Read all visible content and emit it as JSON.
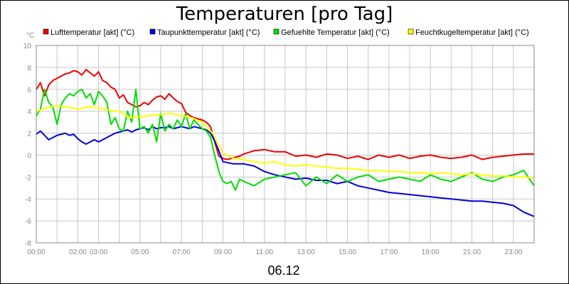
{
  "chart_data": {
    "type": "line",
    "title": "Temperaturen [pro Tag]",
    "date_label": "06.12",
    "yunit": "°C",
    "xlabel": "",
    "ylabel": "",
    "xlim": [
      0,
      24
    ],
    "ylim": [
      -8,
      10
    ],
    "y_ticks": [
      -8,
      -6,
      -4,
      -2,
      0,
      2,
      4,
      6,
      8,
      10
    ],
    "x_ticks": [
      {
        "value": 0,
        "label": "00:00"
      },
      {
        "value": 2,
        "label": "02:00"
      },
      {
        "value": 3,
        "label": "03:00"
      },
      {
        "value": 5,
        "label": "05:00"
      },
      {
        "value": 7,
        "label": "07:00"
      },
      {
        "value": 9,
        "label": "09:00"
      },
      {
        "value": 11,
        "label": "11:00"
      },
      {
        "value": 13,
        "label": "13:00"
      },
      {
        "value": 15,
        "label": "15:00"
      },
      {
        "value": 17,
        "label": "17:00"
      },
      {
        "value": 19,
        "label": "19:00"
      },
      {
        "value": 21,
        "label": "21:00"
      },
      {
        "value": 23,
        "label": "23:00"
      }
    ],
    "grid": true,
    "legend_position": "top",
    "series": [
      {
        "name": "Lufttemperatur [akt] (°C)",
        "color": "#ee0000",
        "x": [
          0,
          0.2,
          0.4,
          0.6,
          0.8,
          1,
          1.2,
          1.4,
          1.6,
          1.8,
          2,
          2.2,
          2.4,
          2.6,
          2.8,
          3,
          3.2,
          3.4,
          3.6,
          3.8,
          4,
          4.2,
          4.4,
          4.6,
          4.8,
          5,
          5.2,
          5.4,
          5.6,
          5.8,
          6,
          6.2,
          6.4,
          6.6,
          6.8,
          7,
          7.2,
          7.4,
          7.6,
          7.8,
          8,
          8.2,
          8.4,
          8.6,
          8.8,
          9,
          9.2,
          9.4,
          9.6,
          9.8,
          10,
          10.5,
          11,
          11.5,
          12,
          12.5,
          13,
          13.5,
          14,
          14.5,
          15,
          15.5,
          16,
          16.5,
          17,
          17.5,
          18,
          18.5,
          19,
          19.5,
          20,
          20.5,
          21,
          21.5,
          22,
          22.5,
          23,
          23.5,
          24
        ],
        "y": [
          6.0,
          6.6,
          5.4,
          6.4,
          6.8,
          7.0,
          7.2,
          7.4,
          7.5,
          7.7,
          7.6,
          7.3,
          7.8,
          7.5,
          7.2,
          7.6,
          6.8,
          6.6,
          6.2,
          6.0,
          5.2,
          5.5,
          4.8,
          4.6,
          4.4,
          4.5,
          4.8,
          4.6,
          5.0,
          5.3,
          5.4,
          5.1,
          5.6,
          5.2,
          4.9,
          4.7,
          3.9,
          3.6,
          3.4,
          3.3,
          3.2,
          3.0,
          2.6,
          1.2,
          -0.1,
          -0.3,
          -0.4,
          -0.3,
          -0.2,
          -0.1,
          0.1,
          0.4,
          0.5,
          0.3,
          0.3,
          -0.1,
          0.0,
          -0.2,
          0.1,
          0.0,
          -0.3,
          -0.1,
          -0.4,
          0.0,
          -0.2,
          0.0,
          -0.3,
          -0.1,
          0.0,
          -0.2,
          -0.3,
          -0.2,
          0.0,
          -0.4,
          -0.2,
          -0.1,
          0.0,
          0.1,
          0.1
        ]
      },
      {
        "name": "Taupunkttemperatur [akt] (°C)",
        "color": "#0000dd",
        "x": [
          0,
          0.2,
          0.4,
          0.6,
          0.8,
          1,
          1.2,
          1.4,
          1.6,
          1.8,
          2,
          2.2,
          2.4,
          2.6,
          2.8,
          3,
          3.2,
          3.4,
          3.6,
          3.8,
          4,
          4.2,
          4.4,
          4.6,
          4.8,
          5,
          5.2,
          5.4,
          5.6,
          5.8,
          6,
          6.2,
          6.4,
          6.6,
          6.8,
          7,
          7.2,
          7.4,
          7.6,
          7.8,
          8,
          8.2,
          8.4,
          8.6,
          8.8,
          9,
          9.5,
          10,
          10.5,
          11,
          11.5,
          12,
          12.5,
          13,
          13.5,
          14,
          14.5,
          15,
          15.5,
          16,
          16.5,
          17,
          17.5,
          18,
          18.5,
          19,
          19.5,
          20,
          20.5,
          21,
          21.5,
          22,
          22.5,
          23,
          23.5,
          24
        ],
        "y": [
          1.9,
          2.2,
          1.8,
          1.4,
          1.6,
          1.8,
          1.9,
          2.0,
          1.8,
          1.9,
          1.5,
          1.2,
          1.0,
          1.2,
          1.4,
          1.2,
          1.4,
          1.6,
          1.8,
          2.0,
          2.1,
          2.2,
          2.3,
          2.1,
          2.3,
          2.4,
          2.5,
          2.3,
          2.6,
          2.4,
          2.5,
          2.5,
          2.6,
          2.4,
          2.5,
          2.6,
          2.5,
          2.4,
          2.6,
          2.5,
          2.4,
          2.3,
          2.0,
          1.3,
          0.4,
          -0.6,
          -0.8,
          -0.8,
          -1.0,
          -1.5,
          -1.8,
          -2.0,
          -2.2,
          -2.1,
          -2.3,
          -2.3,
          -2.6,
          -2.4,
          -2.8,
          -3.0,
          -3.2,
          -3.4,
          -3.5,
          -3.6,
          -3.7,
          -3.8,
          -3.9,
          -4.0,
          -4.1,
          -4.2,
          -4.2,
          -4.3,
          -4.4,
          -4.6,
          -5.2,
          -5.6
        ]
      },
      {
        "name": "Gefuehlte Temperatur [akt] (°C)",
        "color": "#00dd00",
        "x": [
          0,
          0.2,
          0.4,
          0.6,
          0.8,
          1,
          1.2,
          1.4,
          1.6,
          1.8,
          2,
          2.2,
          2.4,
          2.6,
          2.8,
          3,
          3.2,
          3.4,
          3.6,
          3.8,
          4,
          4.2,
          4.4,
          4.6,
          4.8,
          5,
          5.2,
          5.4,
          5.6,
          5.8,
          6,
          6.2,
          6.4,
          6.6,
          6.8,
          7,
          7.2,
          7.4,
          7.6,
          7.8,
          8,
          8.2,
          8.4,
          8.6,
          8.8,
          9,
          9.2,
          9.4,
          9.6,
          9.8,
          10,
          10.5,
          11,
          11.5,
          12,
          12.5,
          13,
          13.5,
          14,
          14.5,
          15,
          15.5,
          16,
          16.5,
          17,
          17.5,
          18,
          18.5,
          19,
          19.5,
          20,
          20.5,
          21,
          21.5,
          22,
          22.5,
          23,
          23.5,
          24
        ],
        "y": [
          3.6,
          4.2,
          6.0,
          4.8,
          4.4,
          2.8,
          4.6,
          5.2,
          5.6,
          5.4,
          5.8,
          6.0,
          5.2,
          5.6,
          4.6,
          5.8,
          5.4,
          4.8,
          2.8,
          3.4,
          2.4,
          2.2,
          4.0,
          3.0,
          6.0,
          2.4,
          2.6,
          2.0,
          2.8,
          1.2,
          3.8,
          2.2,
          2.8,
          2.4,
          3.2,
          2.6,
          3.8,
          2.4,
          3.2,
          2.8,
          2.4,
          2.2,
          1.6,
          0.0,
          -1.5,
          -2.4,
          -2.6,
          -2.4,
          -3.2,
          -2.2,
          -2.4,
          -2.8,
          -2.2,
          -2.0,
          -1.8,
          -1.6,
          -2.8,
          -2.0,
          -2.6,
          -1.8,
          -2.4,
          -2.0,
          -1.8,
          -2.4,
          -2.2,
          -2.0,
          -2.2,
          -2.4,
          -1.8,
          -2.2,
          -2.4,
          -2.0,
          -1.6,
          -2.2,
          -2.4,
          -2.0,
          -1.8,
          -1.4,
          -2.8
        ]
      },
      {
        "name": "Feuchtkugeltemperatur [akt] (°C)",
        "color": "#ffff00",
        "x": [
          0,
          0.5,
          1,
          1.5,
          2,
          2.5,
          3,
          3.5,
          4,
          4.5,
          5,
          5.5,
          6,
          6.5,
          7,
          7.5,
          8,
          8.5,
          9,
          9.5,
          10,
          10.5,
          11,
          11.5,
          12,
          12.5,
          13,
          13.5,
          14,
          14.5,
          15,
          15.5,
          16,
          16.5,
          17,
          17.5,
          18,
          18.5,
          19,
          19.5,
          20,
          20.5,
          21,
          21.5,
          22,
          22.5,
          23,
          23.5,
          24
        ],
        "y": [
          4.0,
          4.3,
          4.5,
          4.4,
          4.2,
          4.4,
          4.3,
          4.1,
          4.0,
          3.4,
          3.5,
          3.6,
          3.7,
          3.8,
          3.6,
          3.4,
          3.0,
          2.0,
          0.2,
          -0.3,
          -0.4,
          -0.6,
          -0.7,
          -0.6,
          -0.9,
          -1.0,
          -0.9,
          -1.0,
          -1.1,
          -1.2,
          -1.2,
          -1.3,
          -1.4,
          -1.4,
          -1.5,
          -1.5,
          -1.6,
          -1.6,
          -1.7,
          -1.6,
          -1.7,
          -1.8,
          -1.7,
          -1.8,
          -1.9,
          -1.9,
          -2.0,
          -2.0,
          -2.1
        ]
      }
    ]
  }
}
